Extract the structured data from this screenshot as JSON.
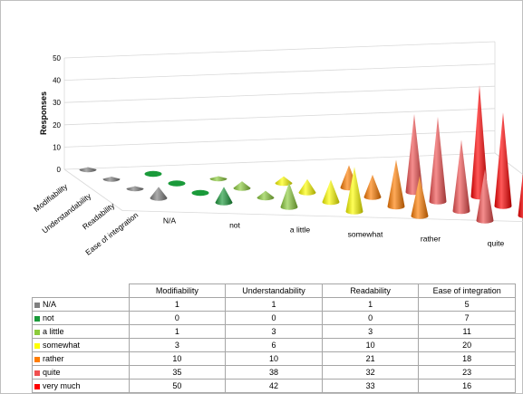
{
  "chart_data": {
    "type": "bar",
    "chart_style": "3d-cone",
    "ylabel": "Responses",
    "ylim": [
      0,
      50
    ],
    "y_ticks": [
      0,
      10,
      20,
      30,
      40,
      50
    ],
    "grid": true,
    "legend": "data-table-below",
    "categories": [
      "N/A",
      "not",
      "a little",
      "somewhat",
      "rather",
      "quite",
      "very much"
    ],
    "category_colors": [
      "#808080",
      "#1a9a3a",
      "#8ccc3c",
      "#ffff00",
      "#ff7c00",
      "#f05050",
      "#ff0000"
    ],
    "series": [
      {
        "name": "Modifiability",
        "values": [
          1,
          0,
          1,
          3,
          10,
          35,
          50
        ]
      },
      {
        "name": "Understandability",
        "values": [
          1,
          0,
          3,
          6,
          10,
          38,
          42
        ]
      },
      {
        "name": "Readability",
        "values": [
          1,
          0,
          3,
          10,
          21,
          32,
          33
        ]
      },
      {
        "name": "Ease of integration",
        "values": [
          5,
          7,
          11,
          20,
          18,
          23,
          16
        ]
      }
    ]
  }
}
